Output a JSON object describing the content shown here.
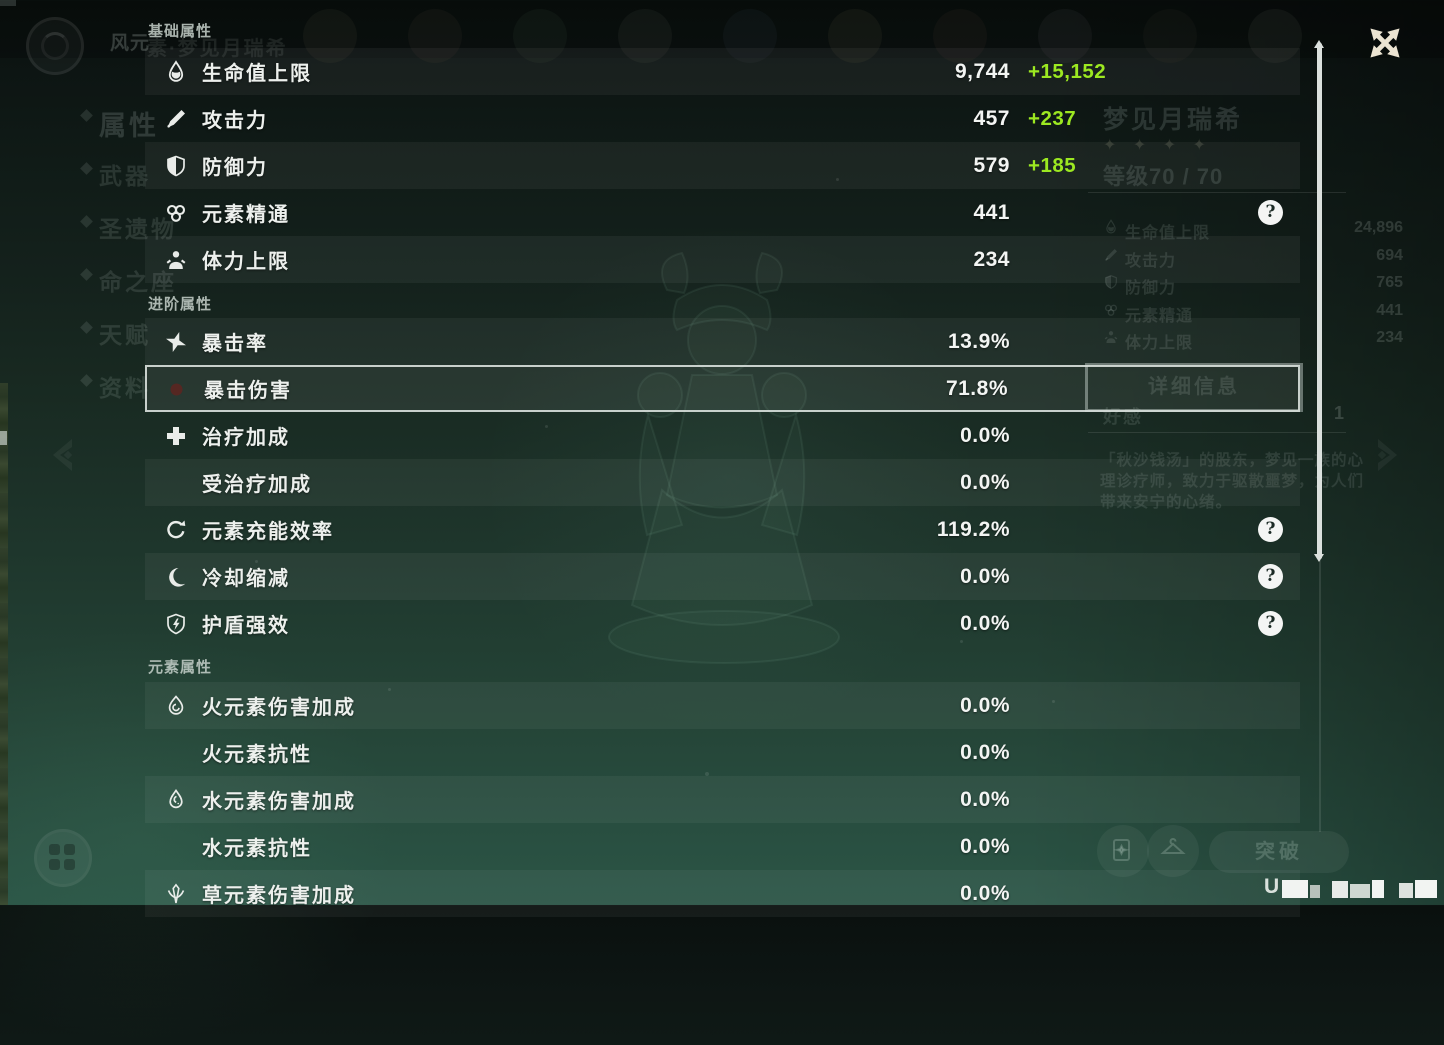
{
  "colors": {
    "bonus_green": "#9ce821",
    "panel_label": "#edf0ed",
    "scrollbar": "#dbe0dd"
  },
  "panel": {
    "sections": [
      {
        "title": "基础属性",
        "rows": [
          {
            "icon": "hp-icon",
            "label": "生命值上限",
            "value": "9,744",
            "bonus": "+15,152",
            "light": true
          },
          {
            "icon": "atk-icon",
            "label": "攻击力",
            "value": "457",
            "bonus": "+237",
            "light": false
          },
          {
            "icon": "def-icon",
            "label": "防御力",
            "value": "579",
            "bonus": "+185",
            "light": true
          },
          {
            "icon": "elemental-mastery-icon",
            "label": "元素精通",
            "value": "441",
            "help": true,
            "light": false
          },
          {
            "icon": "stamina-icon",
            "label": "体力上限",
            "value": "234",
            "light": true
          }
        ]
      },
      {
        "title": "进阶属性",
        "rows": [
          {
            "icon": "crit-rate-icon",
            "label": "暴击率",
            "value": "13.9%",
            "light": true
          },
          {
            "icon": "crit-dmg-icon",
            "label": "暴击伤害",
            "value": "71.8%",
            "selected": true,
            "light": false
          },
          {
            "icon": "healing-bonus-icon",
            "label": "治疗加成",
            "value": "0.0%",
            "light": false
          },
          {
            "icon": null,
            "label": "受治疗加成",
            "value": "0.0%",
            "light": true
          },
          {
            "icon": "energy-recharge-icon",
            "label": "元素充能效率",
            "value": "119.2%",
            "help": true,
            "light": false
          },
          {
            "icon": "cooldown-icon",
            "label": "冷却缩减",
            "value": "0.0%",
            "help": true,
            "light": true
          },
          {
            "icon": "shield-strength-icon",
            "label": "护盾强效",
            "value": "0.0%",
            "help": true,
            "light": false
          }
        ]
      },
      {
        "title": "元素属性",
        "rows": [
          {
            "icon": "pyro-icon",
            "label": "火元素伤害加成",
            "value": "0.0%",
            "light": true
          },
          {
            "icon": null,
            "label": "火元素抗性",
            "value": "0.0%",
            "light": false
          },
          {
            "icon": "hydro-icon",
            "label": "水元素伤害加成",
            "value": "0.0%",
            "light": true
          },
          {
            "icon": null,
            "label": "水元素抗性",
            "value": "0.0%",
            "light": false
          },
          {
            "icon": "dendro-icon",
            "label": "草元素伤害加成",
            "value": "0.0%",
            "light": true
          }
        ]
      }
    ]
  },
  "background": {
    "title_part1": "风元",
    "title_part2": "素·梦见月瑞希",
    "sidebar_items": [
      "属性",
      "武器",
      "圣遗物",
      "命之座",
      "天赋",
      "资料"
    ],
    "character": {
      "name": "梦见月瑞希",
      "stars": "✦ ✦ ✦ ✦",
      "level": "等级70 / 70",
      "stats": [
        {
          "icon": "hp-icon",
          "label": "生命值上限",
          "value": "24,896"
        },
        {
          "icon": "atk-icon",
          "label": "攻击力",
          "value": "694"
        },
        {
          "icon": "def-icon",
          "label": "防御力",
          "value": "765"
        },
        {
          "icon": "elemental-mastery-icon",
          "label": "元素精通",
          "value": "441"
        },
        {
          "icon": "stamina-icon",
          "label": "体力上限",
          "value": "234"
        }
      ],
      "details_button": "详细信息",
      "friendship_label": "好感",
      "friendship_value": "1",
      "description_lines": [
        "「秋沙钱汤」的股东，梦见一族的心",
        "理诊疗师，致力于驱散噩梦，为人们",
        "带来安宁的心绪。"
      ]
    },
    "ascend_button": "突破",
    "uid_prefix": "U"
  }
}
